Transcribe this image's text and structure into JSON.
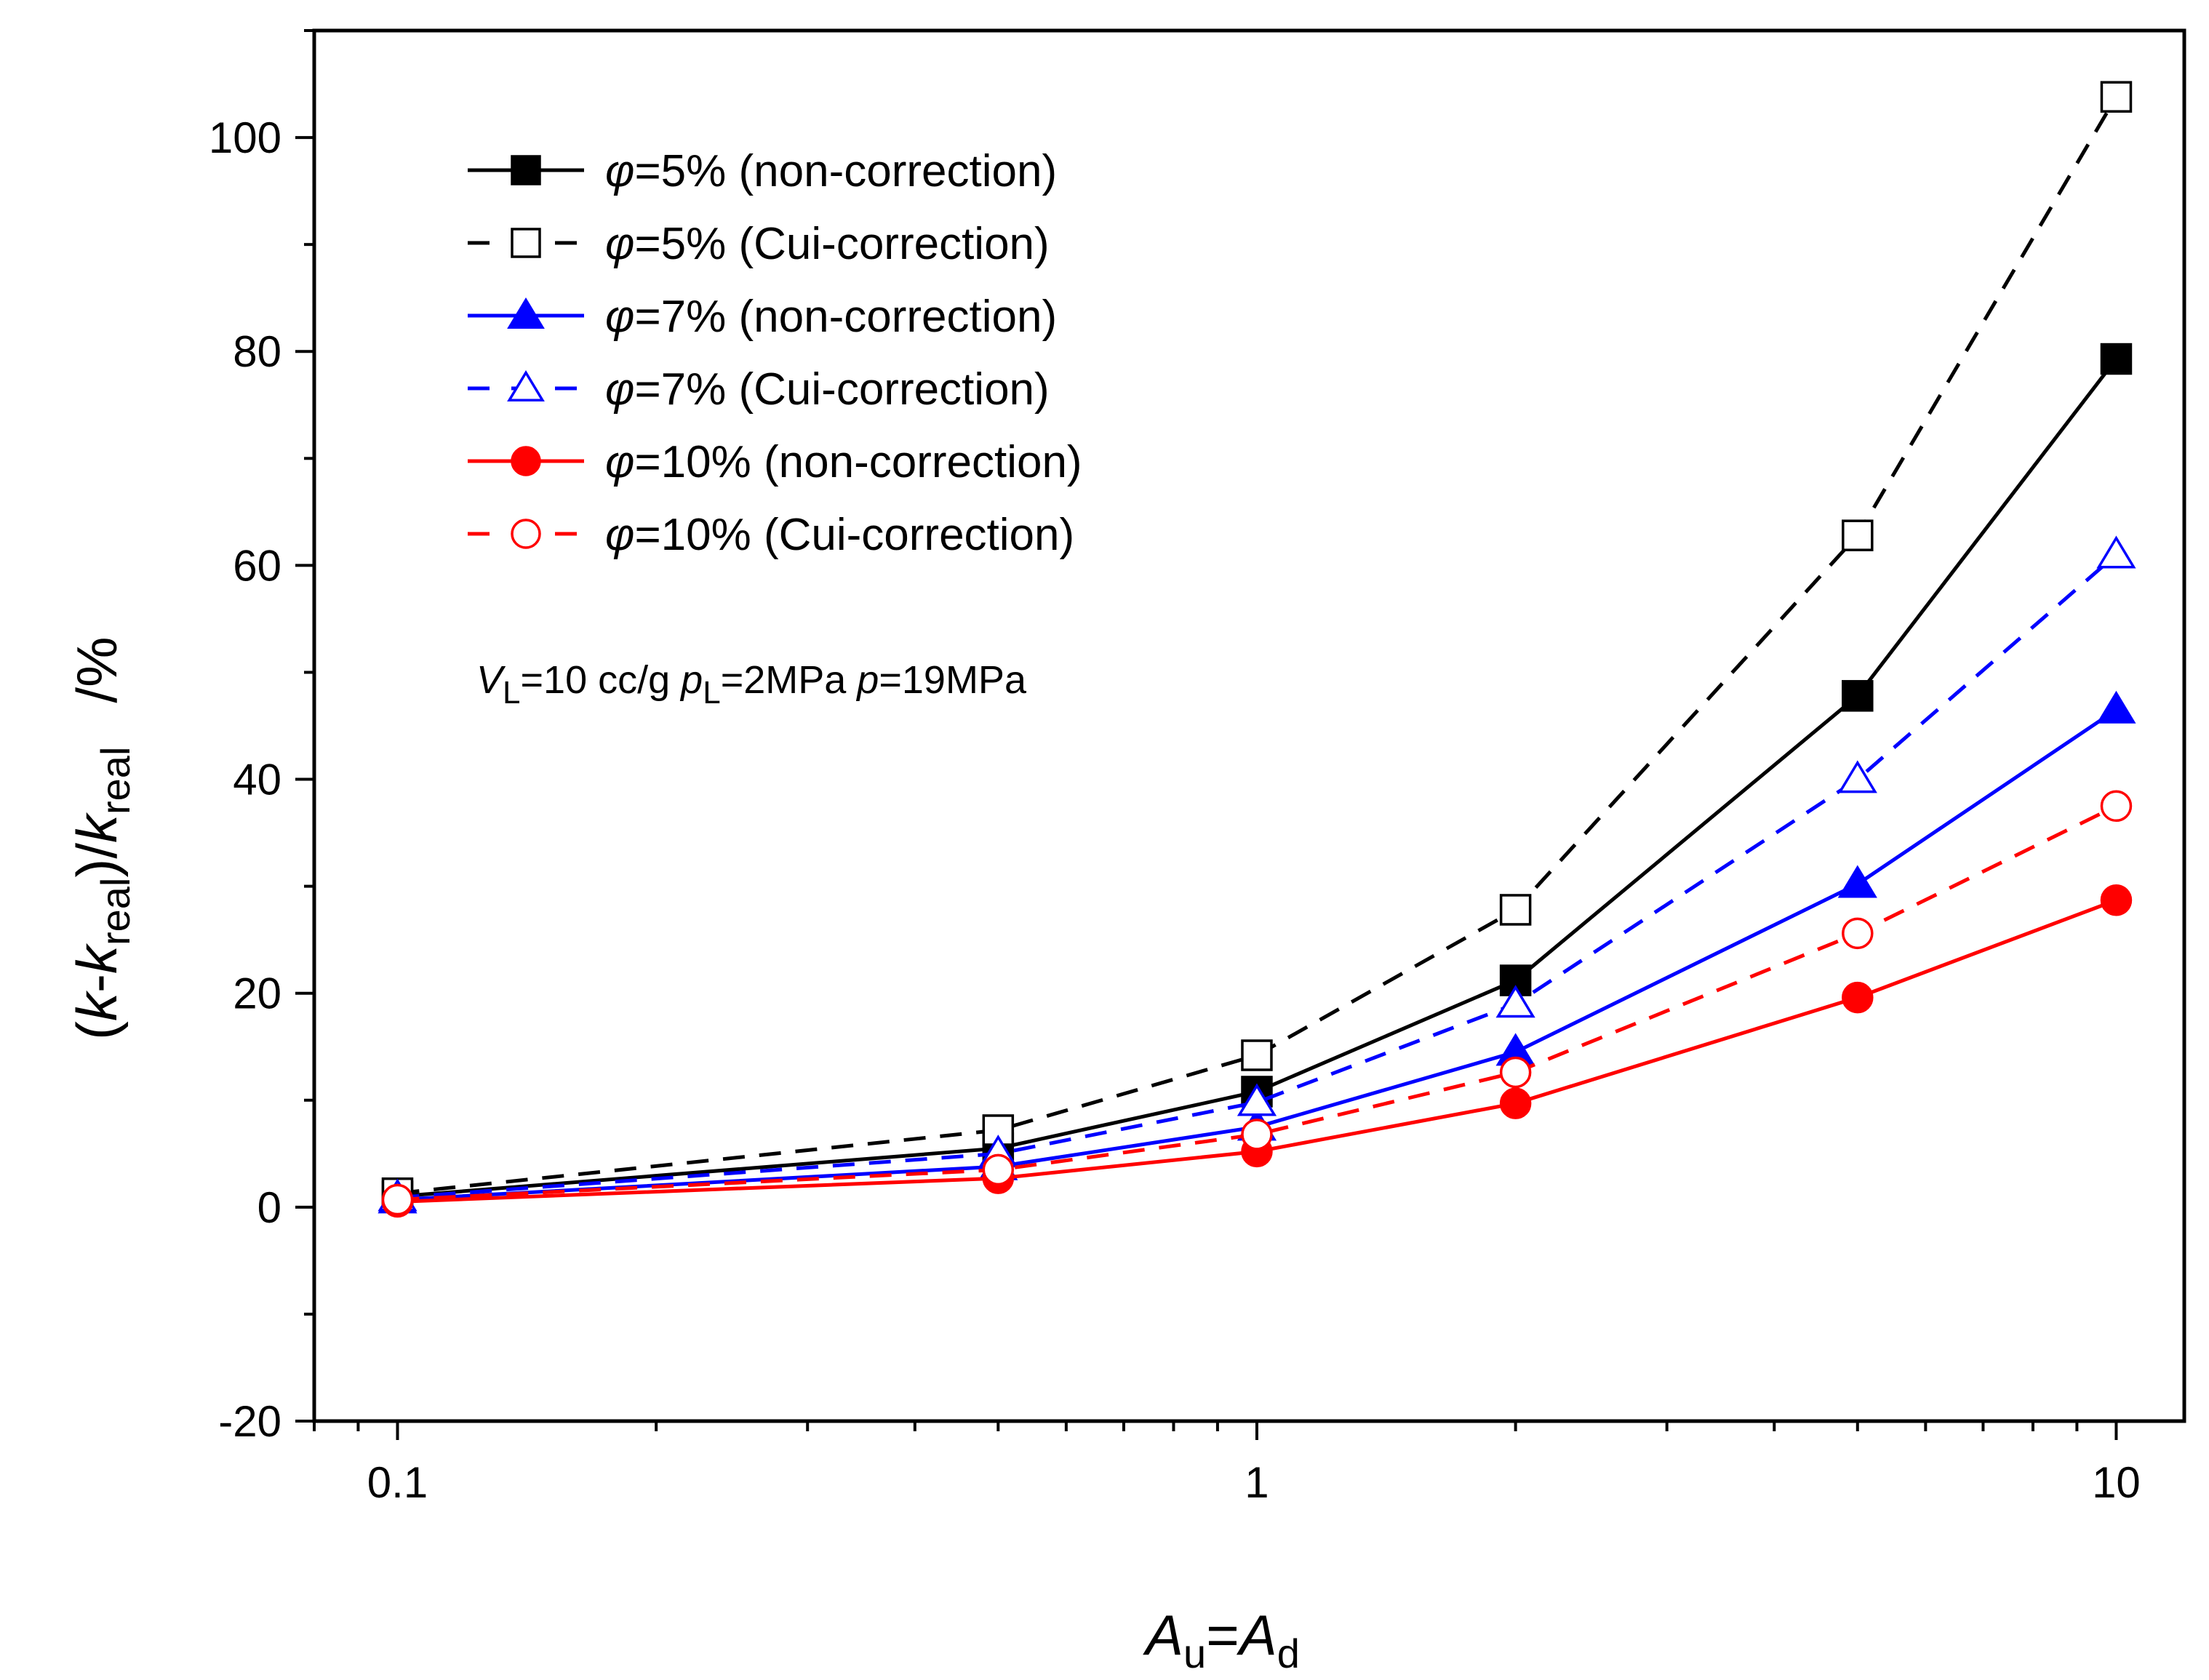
{
  "chart_data": {
    "type": "line",
    "xscale": "log",
    "xlim": [
      0.08,
      12
    ],
    "ylim": [
      -20,
      110
    ],
    "x": [
      0.1,
      0.5,
      1,
      2,
      5,
      10
    ],
    "x_tick_labels": [
      "0.1",
      "1",
      "10"
    ],
    "y_tick_labels": [
      "-20",
      "0",
      "20",
      "40",
      "60",
      "80",
      "100"
    ],
    "y_tick_values": [
      -20,
      0,
      20,
      40,
      60,
      80,
      100
    ],
    "x_tick_values": [
      0.1,
      1,
      10
    ],
    "xlabel": {
      "main_1": "A",
      "sub_1": "u",
      "eq": "=",
      "main_2": "A",
      "sub_2": "d"
    },
    "ylabel": {
      "p1": "(",
      "k1": "k",
      "dash": "-",
      "k2": "k",
      "sub1": "real",
      "p2": ")/",
      "k3": "k",
      "sub2": "real",
      "unit": "/%"
    },
    "annotation": {
      "v": "V",
      "v_sub": "L",
      "v_rest": "=10 cc/g ",
      "p": "p",
      "p_sub": "L",
      "p_rest": "=2MPa ",
      "p2": "p",
      "p2_rest": "=19MPa"
    },
    "legend_position": "top-left",
    "series": [
      {
        "symbol": "φ",
        "name": "=5% (non-correction)",
        "color": "#000000",
        "dash": "solid",
        "marker": "square",
        "filled": true,
        "values": [
          1.0,
          5.5,
          10.8,
          21.2,
          47.8,
          79.3
        ]
      },
      {
        "symbol": "φ",
        "name": "=5% (Cui-correction)",
        "color": "#000000",
        "dash": "dashed",
        "marker": "square",
        "filled": false,
        "values": [
          1.3,
          7.2,
          14.2,
          27.8,
          62.8,
          103.8
        ]
      },
      {
        "symbol": "φ",
        "name": "=7% (non-correction)",
        "color": "#0000ff",
        "dash": "solid",
        "marker": "triangle",
        "filled": true,
        "values": [
          0.7,
          3.8,
          7.5,
          14.5,
          30.2,
          46.5
        ]
      },
      {
        "symbol": "φ",
        "name": "=7% (Cui-correction)",
        "color": "#0000ff",
        "dash": "dashed",
        "marker": "triangle",
        "filled": false,
        "values": [
          0.9,
          5.0,
          9.8,
          19.0,
          40.0,
          61.0
        ]
      },
      {
        "symbol": "φ",
        "name": "=10% (non-correction)",
        "color": "#ff0000",
        "dash": "solid",
        "marker": "circle",
        "filled": true,
        "values": [
          0.5,
          2.7,
          5.2,
          9.7,
          19.6,
          28.7
        ]
      },
      {
        "symbol": "φ",
        "name": "=10% (Cui-correction)",
        "color": "#ff0000",
        "dash": "dashed",
        "marker": "circle",
        "filled": false,
        "values": [
          0.7,
          3.5,
          6.8,
          12.6,
          25.6,
          37.5
        ]
      }
    ]
  }
}
